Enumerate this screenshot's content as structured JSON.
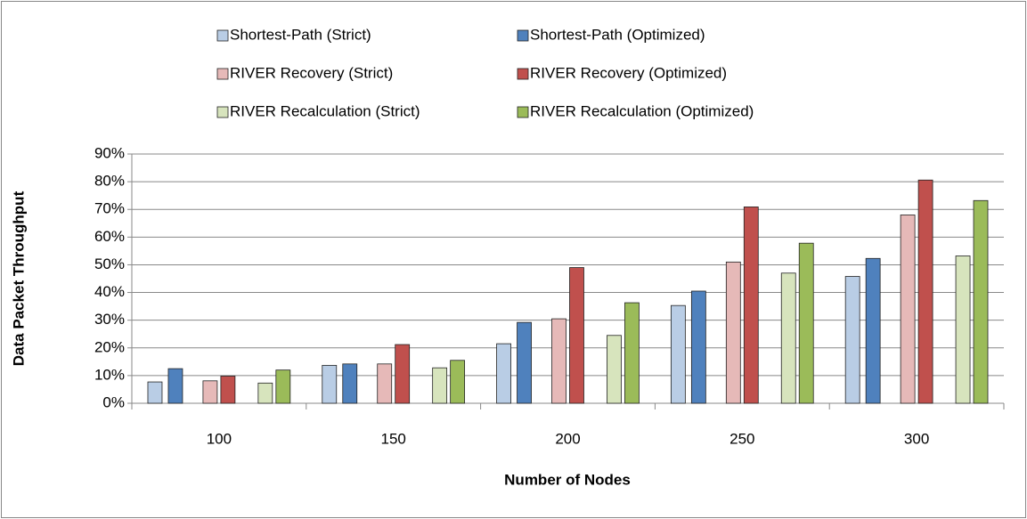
{
  "chart_data": {
    "type": "bar",
    "categories": [
      "100",
      "150",
      "200",
      "250",
      "300"
    ],
    "series": [
      {
        "name": "Shortest-Path (Strict)",
        "color": "#b9cde5",
        "values": [
          7.7,
          13.7,
          21.5,
          35.3,
          45.8
        ]
      },
      {
        "name": "Shortest-Path (Optimized)",
        "color": "#4f81bd",
        "values": [
          12.5,
          14.2,
          29.2,
          40.5,
          52.3
        ]
      },
      {
        "name": "RIVER Recovery (Strict)",
        "color": "#e6b9b8",
        "values": [
          8.1,
          14.2,
          30.5,
          51,
          68
        ]
      },
      {
        "name": "RIVER Recovery (Optimized)",
        "color": "#c0504d",
        "values": [
          9.8,
          21.2,
          49,
          70.9,
          80.6
        ]
      },
      {
        "name": "RIVER Recalculation (Strict)",
        "color": "#d7e4bd",
        "values": [
          7.3,
          12.8,
          24.5,
          47,
          53.2
        ]
      },
      {
        "name": "RIVER Recalculation (Optimized)",
        "color": "#9bbb59",
        "values": [
          12,
          15.5,
          36.3,
          57.8,
          73.2
        ]
      }
    ],
    "ylim": [
      0,
      90
    ],
    "yticks": [
      {
        "value": 0,
        "label": "0%"
      },
      {
        "value": 10,
        "label": "10%"
      },
      {
        "value": 20,
        "label": "20%"
      },
      {
        "value": 30,
        "label": "30%"
      },
      {
        "value": 40,
        "label": "40%"
      },
      {
        "value": 50,
        "label": "50%"
      },
      {
        "value": 60,
        "label": "60%"
      },
      {
        "value": 70,
        "label": "70%"
      },
      {
        "value": 80,
        "label": "80%"
      },
      {
        "value": 90,
        "label": "90%"
      }
    ],
    "y_label": "Data Packet Throughput",
    "x_label": "Number of Nodes",
    "grid": true,
    "legend": "top"
  }
}
